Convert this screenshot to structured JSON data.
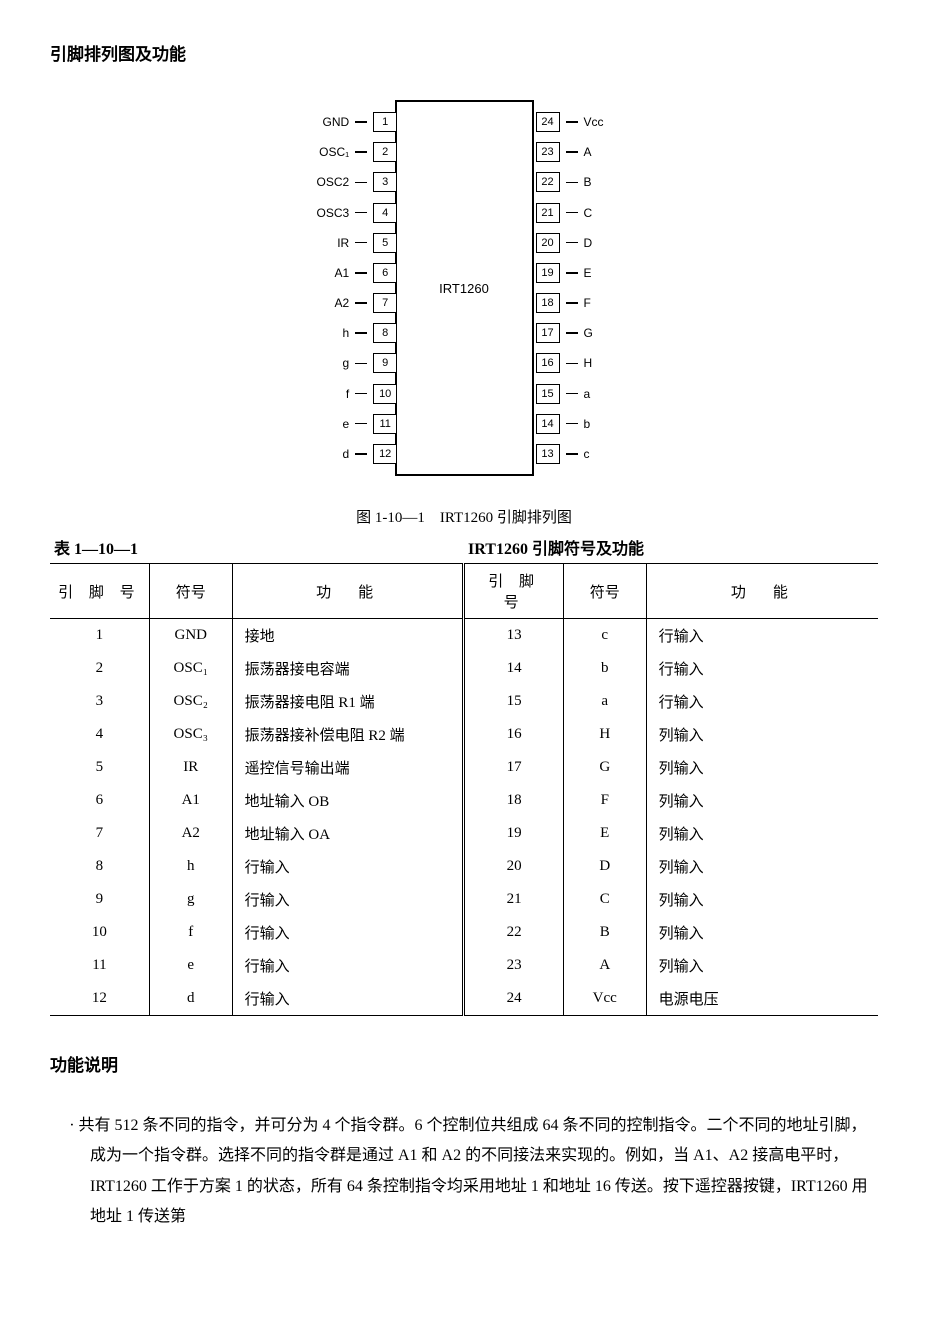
{
  "heading1": "引脚排列图及功能",
  "chip": {
    "label": "IRT1260",
    "left_pins": [
      {
        "name": "GND",
        "num": "1"
      },
      {
        "name": "OSC₁",
        "num": "2"
      },
      {
        "name": "OSC2",
        "num": "3"
      },
      {
        "name": "OSC3",
        "num": "4"
      },
      {
        "name": "IR",
        "num": "5"
      },
      {
        "name": "A1",
        "num": "6"
      },
      {
        "name": "A2",
        "num": "7"
      },
      {
        "name": "h",
        "num": "8"
      },
      {
        "name": "g",
        "num": "9"
      },
      {
        "name": "f",
        "num": "10"
      },
      {
        "name": "e",
        "num": "11"
      },
      {
        "name": "d",
        "num": "12"
      }
    ],
    "right_pins": [
      {
        "num": "24",
        "name": "Vcc"
      },
      {
        "num": "23",
        "name": "A"
      },
      {
        "num": "22",
        "name": "B"
      },
      {
        "num": "21",
        "name": "C"
      },
      {
        "num": "20",
        "name": "D"
      },
      {
        "num": "19",
        "name": "E"
      },
      {
        "num": "18",
        "name": "F"
      },
      {
        "num": "17",
        "name": "G"
      },
      {
        "num": "16",
        "name": "H"
      },
      {
        "num": "15",
        "name": "a"
      },
      {
        "num": "14",
        "name": "b"
      },
      {
        "num": "13",
        "name": "c"
      }
    ]
  },
  "fig_caption": "图 1-10—1　IRT1260 引脚排列图",
  "table_number": "表 1—10—1",
  "table_title": "IRT1260 引脚符号及功能",
  "table": {
    "headers": {
      "pin": "引 脚 号",
      "sym": "符号",
      "func": "功　能"
    },
    "left": [
      {
        "pin": "1",
        "sym": "GND",
        "func": "接地"
      },
      {
        "pin": "2",
        "sym": "OSC₁",
        "func": "振荡器接电容端"
      },
      {
        "pin": "3",
        "sym": "OSC₂",
        "func": "振荡器接电阻 R1 端"
      },
      {
        "pin": "4",
        "sym": "OSC₃",
        "func": "振荡器接补偿电阻 R2 端"
      },
      {
        "pin": "5",
        "sym": "IR",
        "func": "遥控信号输出端"
      },
      {
        "pin": "6",
        "sym": "A1",
        "func": "地址输入 OB"
      },
      {
        "pin": "7",
        "sym": "A2",
        "func": "地址输入 OA"
      },
      {
        "pin": "8",
        "sym": "h",
        "func": "行输入"
      },
      {
        "pin": "9",
        "sym": "g",
        "func": "行输入"
      },
      {
        "pin": "10",
        "sym": "f",
        "func": "行输入"
      },
      {
        "pin": "11",
        "sym": "e",
        "func": "行输入"
      },
      {
        "pin": "12",
        "sym": "d",
        "func": "行输入"
      }
    ],
    "right": [
      {
        "pin": "13",
        "sym": "c",
        "func": "行输入"
      },
      {
        "pin": "14",
        "sym": "b",
        "func": "行输入"
      },
      {
        "pin": "15",
        "sym": "a",
        "func": "行输入"
      },
      {
        "pin": "16",
        "sym": "H",
        "func": "列输入"
      },
      {
        "pin": "17",
        "sym": "G",
        "func": "列输入"
      },
      {
        "pin": "18",
        "sym": "F",
        "func": "列输入"
      },
      {
        "pin": "19",
        "sym": "E",
        "func": "列输入"
      },
      {
        "pin": "20",
        "sym": "D",
        "func": "列输入"
      },
      {
        "pin": "21",
        "sym": "C",
        "func": "列输入"
      },
      {
        "pin": "22",
        "sym": "B",
        "func": "列输入"
      },
      {
        "pin": "23",
        "sym": "A",
        "func": "列输入"
      },
      {
        "pin": "24",
        "sym": "Vcc",
        "func": "电源电压"
      }
    ]
  },
  "heading2": "功能说明",
  "paragraph": "· 共有 512 条不同的指令，并可分为 4 个指令群。6 个控制位共组成 64 条不同的控制指令。二个不同的地址引脚，成为一个指令群。选择不同的指令群是通过 A1 和 A2 的不同接法来实现的。例如，当 A1、A2 接高电平时，IRT1260 工作于方案 1 的状态，所有 64 条控制指令均采用地址 1 和地址 16 传送。按下遥控器按键，IRT1260 用地址 1 传送第"
}
